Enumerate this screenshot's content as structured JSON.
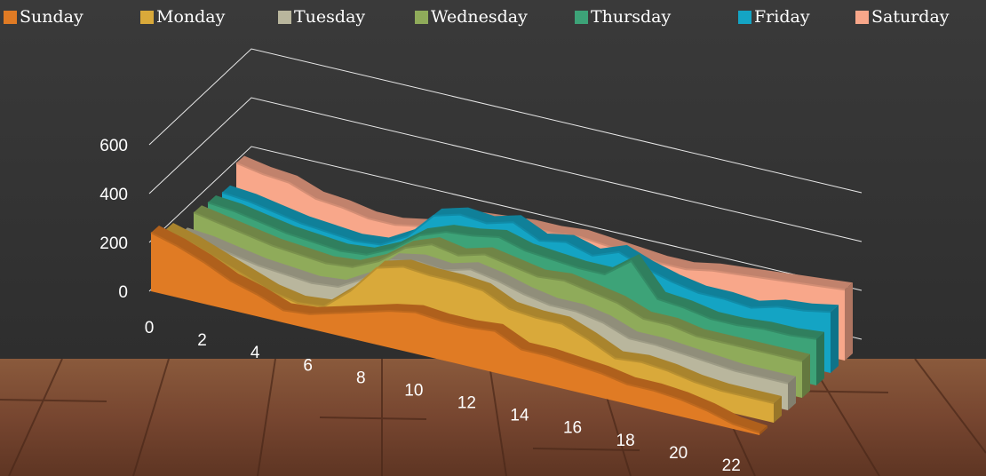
{
  "chart_data": {
    "type": "area3d",
    "x": [
      0,
      1,
      2,
      3,
      4,
      5,
      6,
      7,
      8,
      9,
      10,
      11,
      12,
      13,
      14,
      15,
      16,
      17,
      18,
      19,
      20,
      21,
      22,
      23
    ],
    "xlim": [
      0,
      23
    ],
    "xticks": [
      0,
      2,
      4,
      6,
      8,
      10,
      12,
      14,
      16,
      18,
      20,
      22
    ],
    "ylim": [
      0,
      600
    ],
    "yticks": [
      0,
      200,
      400,
      600
    ],
    "grid": true,
    "legend": "top",
    "series": [
      {
        "name": "Sunday",
        "color": "#e07b24",
        "values": [
          240,
          210,
          170,
          120,
          90,
          50,
          60,
          90,
          120,
          150,
          170,
          160,
          160,
          170,
          120,
          120,
          110,
          100,
          80,
          80,
          70,
          50,
          20,
          10
        ]
      },
      {
        "name": "Monday",
        "color": "#d9a93a",
        "values": [
          200,
          170,
          130,
          90,
          50,
          30,
          40,
          130,
          250,
          280,
          270,
          270,
          260,
          210,
          200,
          200,
          160,
          110,
          120,
          110,
          90,
          80,
          80,
          80
        ]
      },
      {
        "name": "Tuesday",
        "color": "#b9b69d",
        "values": [
          130,
          120,
          100,
          80,
          70,
          60,
          70,
          130,
          230,
          250,
          240,
          270,
          250,
          220,
          200,
          200,
          180,
          140,
          140,
          130,
          120,
          110,
          110,
          110
        ]
      },
      {
        "name": "Wednesday",
        "color": "#8fab5a",
        "values": [
          170,
          150,
          130,
          110,
          100,
          90,
          100,
          150,
          230,
          270,
          250,
          280,
          260,
          240,
          250,
          230,
          210,
          170,
          170,
          150,
          150,
          150,
          150,
          150
        ]
      },
      {
        "name": "Thursday",
        "color": "#3da378",
        "values": [
          160,
          150,
          130,
          110,
          100,
          90,
          100,
          150,
          230,
          270,
          280,
          300,
          270,
          260,
          250,
          250,
          330,
          200,
          190,
          170,
          170,
          180,
          180,
          190
        ]
      },
      {
        "name": "Friday",
        "color": "#14a4c4",
        "values": [
          150,
          140,
          120,
          100,
          90,
          80,
          90,
          150,
          260,
          290,
          280,
          310,
          260,
          280,
          250,
          290,
          250,
          220,
          200,
          200,
          190,
          220,
          230,
          250
        ]
      },
      {
        "name": "Saturday",
        "color": "#f8a78a",
        "values": [
          220,
          200,
          190,
          150,
          140,
          120,
          120,
          140,
          190,
          220,
          230,
          240,
          240,
          250,
          240,
          230,
          220,
          220,
          240,
          250,
          260,
          270,
          280,
          290
        ]
      }
    ]
  }
}
